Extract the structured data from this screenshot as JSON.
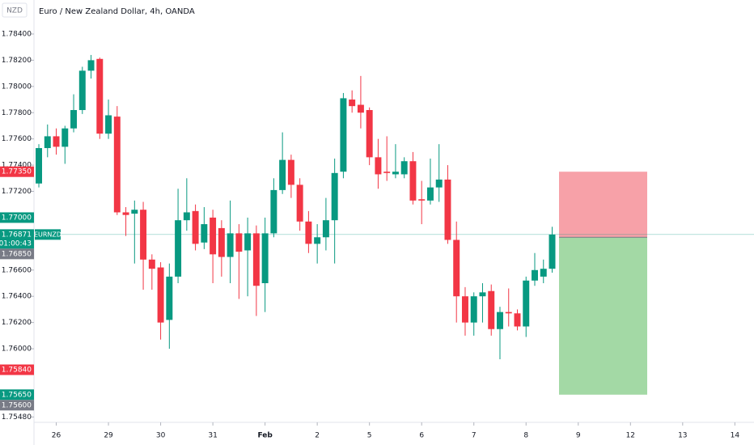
{
  "chart_data": {
    "type": "candlestick",
    "title": "Euro / New Zealand Dollar, 4h, OANDA",
    "currency": "NZD",
    "up_color": "#089981",
    "down_color": "#f23645",
    "open": [
      1.7726,
      1.7753,
      1.7762,
      1.7754,
      1.7768,
      1.7782,
      1.7812,
      1.7821,
      1.7764,
      1.7777,
      1.7704,
      1.7703,
      1.7706,
      1.7668,
      1.7662,
      1.7622,
      1.7655,
      1.7698,
      1.7705,
      1.7681,
      1.77,
      1.7692,
      1.767,
      1.7688,
      1.7675,
      1.7688,
      1.765,
      1.7688,
      1.7721,
      1.7744,
      1.7725,
      1.7697,
      1.768,
      1.7685,
      1.7698,
      1.7735,
      1.779,
      1.7786,
      1.7782,
      1.7746,
      1.7735,
      1.7733,
      1.7733,
      1.7743,
      1.7714,
      1.7713,
      1.7723,
      1.7729,
      1.7683,
      1.764,
      1.762,
      1.764,
      1.7644,
      1.7615,
      1.7628,
      1.7627,
      1.7617,
      1.7652,
      1.7655,
      1.7661
    ],
    "high": [
      1.7756,
      1.7771,
      1.7768,
      1.777,
      1.7794,
      1.7815,
      1.7824,
      1.7822,
      1.779,
      1.7785,
      1.7708,
      1.7713,
      1.7712,
      1.7672,
      1.7666,
      1.7665,
      1.7722,
      1.773,
      1.771,
      1.7708,
      1.7706,
      1.7698,
      1.7713,
      1.7695,
      1.77,
      1.7694,
      1.77,
      1.773,
      1.7765,
      1.7748,
      1.773,
      1.7705,
      1.7695,
      1.7715,
      1.7745,
      1.7795,
      1.7797,
      1.7808,
      1.7784,
      1.776,
      1.7762,
      1.7756,
      1.7746,
      1.775,
      1.7728,
      1.7745,
      1.7756,
      1.774,
      1.7697,
      1.7647,
      1.7643,
      1.765,
      1.7649,
      1.7632,
      1.7646,
      1.763,
      1.7655,
      1.7673,
      1.7668,
      1.7693
    ],
    "low": [
      1.7723,
      1.7746,
      1.7748,
      1.7741,
      1.7765,
      1.7779,
      1.7806,
      1.776,
      1.776,
      1.7702,
      1.7686,
      1.7665,
      1.7645,
      1.7645,
      1.7607,
      1.76,
      1.765,
      1.769,
      1.7675,
      1.7676,
      1.765,
      1.7655,
      1.765,
      1.7638,
      1.764,
      1.7625,
      1.7628,
      1.7685,
      1.7718,
      1.7715,
      1.769,
      1.7673,
      1.7665,
      1.7675,
      1.7665,
      1.773,
      1.778,
      1.7768,
      1.774,
      1.7722,
      1.7728,
      1.773,
      1.773,
      1.771,
      1.7695,
      1.771,
      1.7712,
      1.768,
      1.762,
      1.761,
      1.761,
      1.762,
      1.761,
      1.7592,
      1.7617,
      1.7614,
      1.7609,
      1.7648,
      1.765,
      1.7658
    ],
    "close": [
      1.7753,
      1.7762,
      1.7754,
      1.7768,
      1.7782,
      1.7812,
      1.782,
      1.7764,
      1.7778,
      1.7704,
      1.7702,
      1.7706,
      1.7668,
      1.7661,
      1.762,
      1.7655,
      1.7698,
      1.7704,
      1.768,
      1.7695,
      1.7672,
      1.767,
      1.7688,
      1.7674,
      1.7688,
      1.7648,
      1.7688,
      1.7721,
      1.7744,
      1.7725,
      1.7697,
      1.768,
      1.7685,
      1.7698,
      1.7734,
      1.7791,
      1.7785,
      1.778,
      1.7746,
      1.7733,
      1.7734,
      1.7735,
      1.7743,
      1.7713,
      1.7713,
      1.7723,
      1.7729,
      1.7683,
      1.764,
      1.762,
      1.764,
      1.7643,
      1.7615,
      1.7628,
      1.7627,
      1.7617,
      1.7652,
      1.766,
      1.7661,
      1.76871
    ],
    "xlim": [
      -0.56,
      82.2
    ],
    "xticks": [
      {
        "value": 2,
        "label": "26"
      },
      {
        "value": 8,
        "label": "29"
      },
      {
        "value": 14,
        "label": "30"
      },
      {
        "value": 20,
        "label": "31"
      },
      {
        "value": 26,
        "label": "Feb"
      },
      {
        "value": 32,
        "label": "2"
      },
      {
        "value": 38,
        "label": "5"
      },
      {
        "value": 44,
        "label": "6"
      },
      {
        "value": 50,
        "label": "7"
      },
      {
        "value": 56,
        "label": "8"
      },
      {
        "value": 62,
        "label": "9"
      },
      {
        "value": 68,
        "label": "12"
      },
      {
        "value": 74,
        "label": "13"
      },
      {
        "value": 80,
        "label": "14"
      }
    ],
    "ylim": [
      1.75439,
      1.78659
    ],
    "yticks": [
      {
        "value": 1.784,
        "label": "1.78400"
      },
      {
        "value": 1.782,
        "label": "1.78200"
      },
      {
        "value": 1.78,
        "label": "1.78000"
      },
      {
        "value": 1.778,
        "label": "1.77800"
      },
      {
        "value": 1.776,
        "label": "1.77600"
      },
      {
        "value": 1.774,
        "label": "1.77400"
      },
      {
        "value": 1.772,
        "label": "1.77200"
      },
      {
        "value": 1.766,
        "label": "1.76600"
      },
      {
        "value": 1.764,
        "label": "1.76400"
      },
      {
        "value": 1.762,
        "label": "1.76200"
      },
      {
        "value": 1.76,
        "label": "1.76000"
      },
      {
        "value": 1.7548,
        "label": "1.75480"
      }
    ],
    "price_labels": [
      {
        "value": 1.7735,
        "label": "1.77350",
        "color": "#f23645"
      },
      {
        "value": 1.77,
        "label": "1.77000",
        "color": "#089981"
      },
      {
        "value": 1.76871,
        "label": "1.76871",
        "color": "#089981",
        "countdown": "01:00:43",
        "tag": "EURNZD"
      },
      {
        "value": 1.7685,
        "label": "1.76850",
        "color": "#787b86"
      },
      {
        "value": 1.7584,
        "label": "1.75840",
        "color": "#f23645"
      },
      {
        "value": 1.7565,
        "label": "1.75650",
        "color": "#089981"
      },
      {
        "value": 1.756,
        "label": "1.75600",
        "color": "#787b86"
      }
    ],
    "position": {
      "stop": 1.7735,
      "entry": 1.7685,
      "target": 1.7565,
      "stop_color": "#f7a1a8",
      "target_color": "#a3d9a5"
    }
  }
}
